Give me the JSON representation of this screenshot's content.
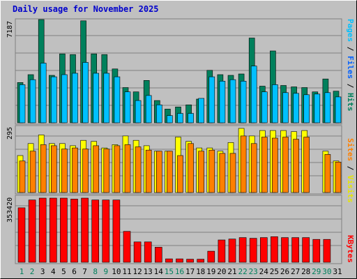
{
  "title": "Daily usage for November 2025",
  "colors": {
    "hits": "#00805c",
    "files": "#00c0ff",
    "sites": "#ff8000",
    "visits": "#ffff00",
    "kbytes": "#ff0000",
    "title": "#0000cc",
    "weekend": "#00805c",
    "weekday": "#000000",
    "plot_bg": "#c0c0c0",
    "grid": "#808080"
  },
  "chart_data": [
    {
      "type": "bar",
      "panel": "top",
      "y_max_label": "7187",
      "ylim": [
        0,
        7187
      ],
      "legend": [
        "Pages",
        "Files",
        "Hits"
      ],
      "categories": [
        "1",
        "2",
        "3",
        "4",
        "5",
        "6",
        "7",
        "8",
        "9",
        "10",
        "11",
        "12",
        "13",
        "14",
        "15",
        "16",
        "17",
        "18",
        "19",
        "20",
        "21",
        "22",
        "23",
        "24",
        "25",
        "26",
        "27",
        "28",
        "29",
        "30",
        "31"
      ],
      "series": [
        {
          "name": "Hits",
          "values": [
            2800,
            3350,
            7187,
            3300,
            4800,
            4750,
            7100,
            4800,
            4750,
            3750,
            2450,
            2150,
            2950,
            1550,
            950,
            1100,
            1250,
            1650,
            3650,
            3350,
            3300,
            3400,
            5900,
            2550,
            5000,
            2600,
            2500,
            2450,
            2150,
            3050,
            2200
          ]
        },
        {
          "name": "Files",
          "values": [
            2650,
            3000,
            4150,
            3200,
            3350,
            3450,
            4200,
            3450,
            3450,
            3200,
            2150,
            1550,
            1900,
            1250,
            500,
            650,
            650,
            1700,
            3200,
            2900,
            3000,
            2900,
            3950,
            2150,
            2650,
            2100,
            2050,
            1950,
            2000,
            2100,
            1800
          ]
        },
        {
          "name": "Pages",
          "values": [
            2650,
            3000,
            4150,
            3200,
            3350,
            3450,
            4200,
            3450,
            3450,
            3200,
            2150,
            1550,
            1900,
            1250,
            500,
            650,
            650,
            1700,
            3200,
            2900,
            3000,
            2900,
            3950,
            2150,
            2650,
            2100,
            2050,
            1950,
            2000,
            2100,
            1800
          ]
        }
      ]
    },
    {
      "type": "bar",
      "panel": "middle",
      "y_max_label": "295",
      "ylim": [
        0,
        295
      ],
      "legend": [
        "Sites",
        "Visits"
      ],
      "categories": [
        "1",
        "2",
        "3",
        "4",
        "5",
        "6",
        "7",
        "8",
        "9",
        "10",
        "11",
        "12",
        "13",
        "14",
        "15",
        "16",
        "17",
        "18",
        "19",
        "20",
        "21",
        "22",
        "23",
        "24",
        "25",
        "26",
        "27",
        "28",
        "29",
        "30",
        "31"
      ],
      "series": [
        {
          "name": "Visits",
          "values": [
            170,
            225,
            265,
            225,
            225,
            215,
            240,
            235,
            205,
            220,
            260,
            240,
            215,
            190,
            190,
            255,
            235,
            205,
            205,
            190,
            230,
            295,
            260,
            285,
            285,
            285,
            280,
            285,
            0,
            190,
            145
          ]
        },
        {
          "name": "Sites",
          "values": [
            145,
            190,
            220,
            215,
            200,
            205,
            200,
            215,
            200,
            215,
            220,
            210,
            195,
            190,
            190,
            170,
            225,
            190,
            195,
            180,
            180,
            260,
            225,
            255,
            250,
            255,
            245,
            255,
            0,
            175,
            140
          ]
        }
      ]
    },
    {
      "type": "bar",
      "panel": "bottom",
      "y_max_label": "353420",
      "ylim": [
        0,
        353420
      ],
      "legend": [
        "KBytes"
      ],
      "categories": [
        "1",
        "2",
        "3",
        "4",
        "5",
        "6",
        "7",
        "8",
        "9",
        "10",
        "11",
        "12",
        "13",
        "14",
        "15",
        "16",
        "17",
        "18",
        "19",
        "20",
        "21",
        "22",
        "23",
        "24",
        "25",
        "26",
        "27",
        "28",
        "29",
        "30",
        "31"
      ],
      "series": [
        {
          "name": "KBytes",
          "values": [
            300000,
            343000,
            353420,
            353420,
            353420,
            348000,
            353420,
            343000,
            343000,
            343000,
            170000,
            112000,
            112000,
            83000,
            19000,
            19000,
            17000,
            17000,
            61000,
            123000,
            128000,
            136000,
            132000,
            136000,
            141000,
            136000,
            136000,
            136000,
            126000,
            126000,
            0
          ]
        }
      ]
    }
  ],
  "x_labels": [
    "1",
    "2",
    "3",
    "4",
    "5",
    "6",
    "7",
    "8",
    "9",
    "10",
    "11",
    "12",
    "13",
    "14",
    "15",
    "16",
    "17",
    "18",
    "19",
    "20",
    "21",
    "22",
    "23",
    "24",
    "25",
    "26",
    "27",
    "28",
    "29",
    "30",
    "31"
  ],
  "weekend_days": [
    1,
    2,
    8,
    9,
    15,
    16,
    22,
    23,
    29,
    30
  ]
}
